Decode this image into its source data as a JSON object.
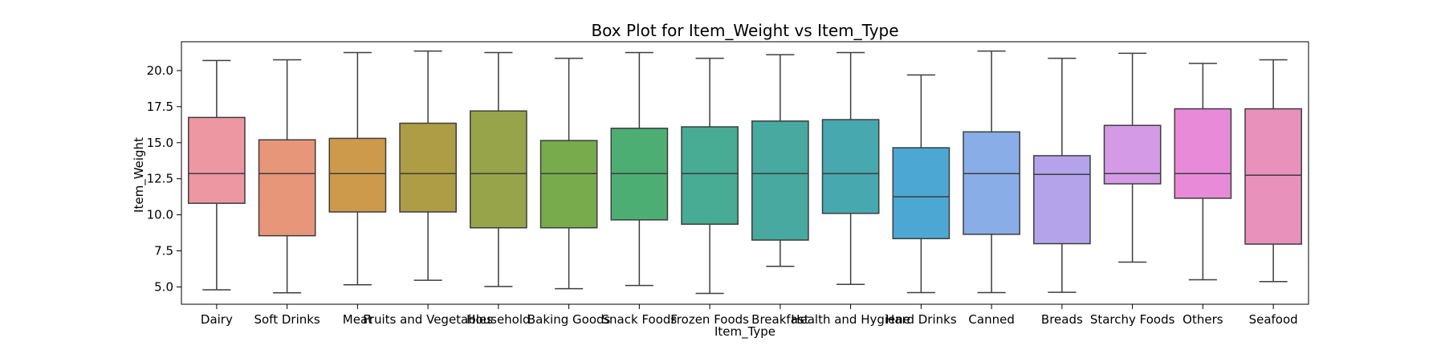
{
  "chart_data": {
    "type": "box",
    "title": "Box Plot for Item_Weight vs Item_Type",
    "xlabel": "Item_Type",
    "ylabel": "Item_Weight",
    "ylim": [
      3.8,
      22.0
    ],
    "yticks": [
      5.0,
      7.5,
      10.0,
      12.5,
      15.0,
      17.5,
      20.0
    ],
    "ytick_labels": [
      "5.0",
      "7.5",
      "10.0",
      "12.5",
      "15.0",
      "17.5",
      "20.0"
    ],
    "grid": false,
    "boxes": [
      {
        "category": "Dairy",
        "whisker_low": 4.8,
        "q1": 10.8,
        "median": 12.86,
        "q3": 16.75,
        "whisker_high": 20.7,
        "color": "#ed97a3"
      },
      {
        "category": "Soft Drinks",
        "whisker_low": 4.59,
        "q1": 8.55,
        "median": 12.86,
        "q3": 15.2,
        "whisker_high": 20.75,
        "color": "#e79679"
      },
      {
        "category": "Meat",
        "whisker_low": 5.15,
        "q1": 10.2,
        "median": 12.86,
        "q3": 15.3,
        "whisker_high": 21.25,
        "color": "#cc9a4a"
      },
      {
        "category": "Fruits and Vegetables",
        "whisker_low": 5.46,
        "q1": 10.2,
        "median": 12.86,
        "q3": 16.35,
        "whisker_high": 21.35,
        "color": "#ae9d44"
      },
      {
        "category": "Household",
        "whisker_low": 5.03,
        "q1": 9.1,
        "median": 12.86,
        "q3": 17.2,
        "whisker_high": 21.25,
        "color": "#97a44a"
      },
      {
        "category": "Baking Goods",
        "whisker_low": 4.88,
        "q1": 9.1,
        "median": 12.86,
        "q3": 15.15,
        "whisker_high": 20.85,
        "color": "#78ab4c"
      },
      {
        "category": "Snack Foods",
        "whisker_low": 5.1,
        "q1": 9.65,
        "median": 12.86,
        "q3": 16.0,
        "whisker_high": 21.25,
        "color": "#4dae73"
      },
      {
        "category": "Frozen Foods",
        "whisker_low": 4.55,
        "q1": 9.35,
        "median": 12.86,
        "q3": 16.1,
        "whisker_high": 20.85,
        "color": "#48ab93"
      },
      {
        "category": "Breakfast",
        "whisker_low": 6.43,
        "q1": 8.25,
        "median": 12.86,
        "q3": 16.5,
        "whisker_high": 21.1,
        "color": "#47a9a0"
      },
      {
        "category": "Health and Hygiene",
        "whisker_low": 5.18,
        "q1": 10.1,
        "median": 12.86,
        "q3": 16.6,
        "whisker_high": 21.25,
        "color": "#48a8af"
      },
      {
        "category": "Hard Drinks",
        "whisker_low": 4.61,
        "q1": 8.35,
        "median": 11.25,
        "q3": 14.65,
        "whisker_high": 19.7,
        "color": "#4ca8d3"
      },
      {
        "category": "Canned",
        "whisker_low": 4.61,
        "q1": 8.65,
        "median": 12.86,
        "q3": 15.75,
        "whisker_high": 21.35,
        "color": "#89ade6"
      },
      {
        "category": "Breads",
        "whisker_low": 4.63,
        "q1": 8.0,
        "median": 12.8,
        "q3": 14.1,
        "whisker_high": 20.85,
        "color": "#b4a3eb"
      },
      {
        "category": "Starchy Foods",
        "whisker_low": 6.72,
        "q1": 12.15,
        "median": 12.86,
        "q3": 16.2,
        "whisker_high": 21.2,
        "color": "#d49ae5"
      },
      {
        "category": "Others",
        "whisker_low": 5.5,
        "q1": 11.15,
        "median": 12.86,
        "q3": 17.35,
        "whisker_high": 20.5,
        "color": "#e98ad9"
      },
      {
        "category": "Seafood",
        "whisker_low": 5.37,
        "q1": 7.97,
        "median": 12.75,
        "q3": 17.35,
        "whisker_high": 20.75,
        "color": "#e891bb"
      }
    ]
  }
}
